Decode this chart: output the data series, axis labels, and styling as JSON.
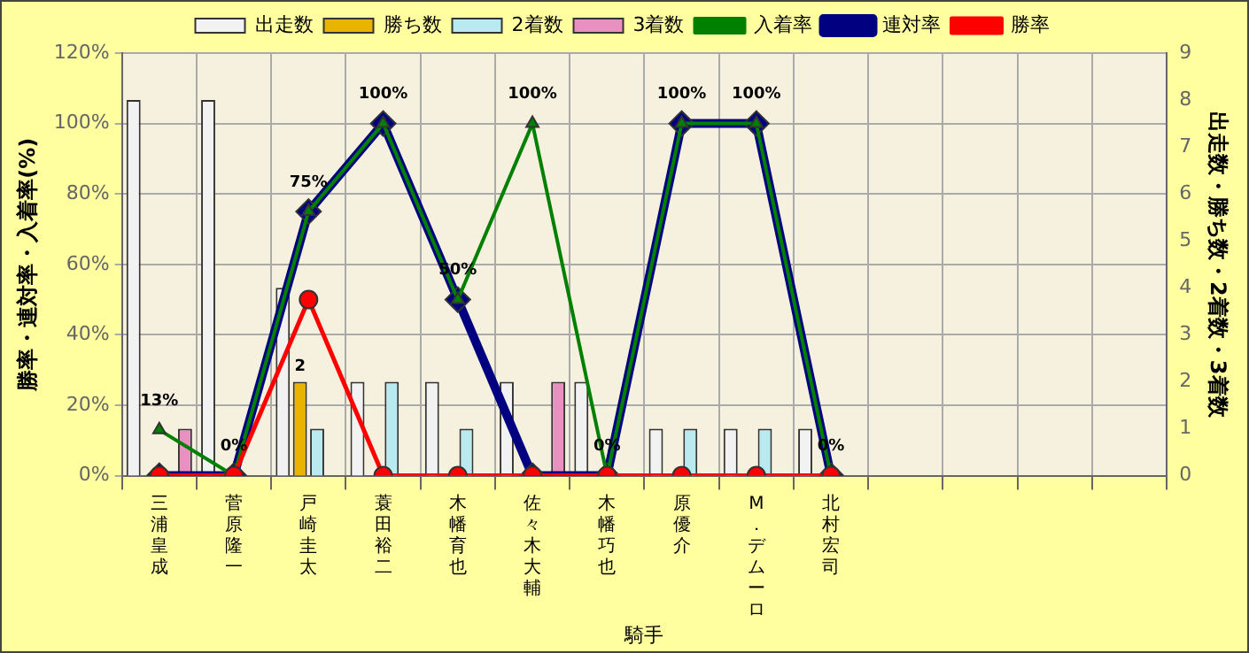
{
  "chart_data": {
    "type": "bar",
    "xlabel": "騎手",
    "ylabel": "勝率・連対率・入着率(%)",
    "y2label": "出走数・勝ち数・2着数・3着数",
    "categories": [
      "三浦皇成",
      "菅原隆一",
      "戸崎圭太",
      "蓑田裕二",
      "木幡育也",
      "佐々木大輔",
      "木幡巧也",
      "原優介",
      "M．デムーロ",
      "北村宏司",
      null,
      null,
      null,
      null
    ],
    "series": [
      {
        "name": "出走数",
        "axis": "y2",
        "color": "#f2f2f2",
        "values": [
          8,
          8,
          4,
          2,
          2,
          2,
          2,
          1,
          1,
          1,
          null,
          null,
          null,
          null
        ]
      },
      {
        "name": "勝ち数",
        "axis": "y2",
        "color": "#e8b400",
        "values": [
          0,
          0,
          2,
          0,
          0,
          0,
          0,
          0,
          0,
          0,
          null,
          null,
          null,
          null
        ],
        "value_labels": [
          null,
          null,
          "2",
          null,
          null,
          null,
          null,
          null,
          null,
          null,
          null,
          null,
          null,
          null
        ]
      },
      {
        "name": "2着数",
        "axis": "y2",
        "color": "#b8eaf0",
        "values": [
          0,
          0,
          1,
          2,
          1,
          0,
          0,
          1,
          1,
          0,
          null,
          null,
          null,
          null
        ]
      },
      {
        "name": "3着数",
        "axis": "y2",
        "color": "#e890c0",
        "values": [
          1,
          0,
          0,
          0,
          0,
          2,
          0,
          0,
          0,
          0,
          null,
          null,
          null,
          null
        ]
      },
      {
        "name": "入着率",
        "type": "line",
        "axis": "y",
        "color": "#008000",
        "marker": "triangle",
        "values": [
          13,
          0,
          75,
          100,
          50,
          100,
          0,
          100,
          100,
          0,
          null,
          null,
          null,
          null
        ],
        "value_labels": [
          "13%",
          "0%",
          "75%",
          "100%",
          "50%",
          "100%",
          "0%",
          "100%",
          "100%",
          "0%",
          null,
          null,
          null,
          null
        ]
      },
      {
        "name": "連対率",
        "type": "line",
        "axis": "y",
        "color": "#000080",
        "marker": "diamond",
        "values": [
          0,
          0,
          75,
          100,
          50,
          0,
          0,
          100,
          100,
          0,
          null,
          null,
          null,
          null
        ]
      },
      {
        "name": "勝率",
        "type": "line",
        "axis": "y",
        "color": "#ff0000",
        "marker": "circle",
        "values": [
          0,
          0,
          50,
          0,
          0,
          0,
          0,
          0,
          0,
          0,
          null,
          null,
          null,
          null
        ]
      }
    ],
    "ylim": [
      0,
      120
    ],
    "yticks": [
      {
        "value": 0,
        "label": "0%"
      },
      {
        "value": 20,
        "label": "20%"
      },
      {
        "value": 40,
        "label": "40%"
      },
      {
        "value": 60,
        "label": "60%"
      },
      {
        "value": 80,
        "label": "80%"
      },
      {
        "value": 100,
        "label": "100%"
      },
      {
        "value": 120,
        "label": "120%"
      }
    ],
    "y2lim": [
      0,
      9
    ],
    "y2ticks": [
      0,
      1,
      2,
      3,
      4,
      5,
      6,
      7,
      8,
      9
    ],
    "grid": true,
    "legend": "top"
  }
}
